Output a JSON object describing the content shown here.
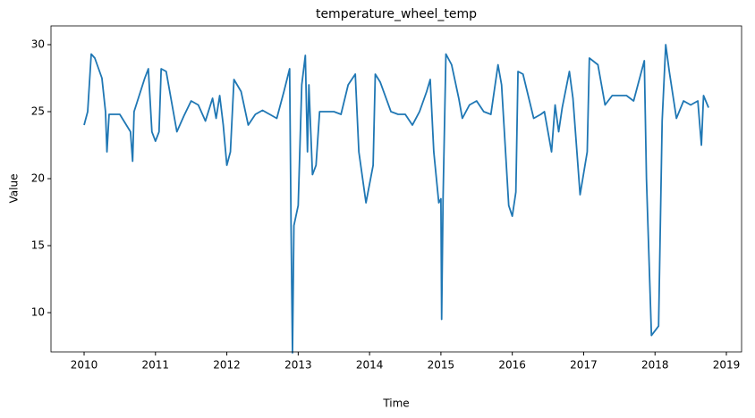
{
  "chart_data": {
    "type": "line",
    "title": "temperature_wheel_temp",
    "x_label": "Time",
    "y_label": "Value",
    "color": "#1f77b4",
    "x": [
      2010.0,
      2010.05,
      2010.1,
      2010.15,
      2010.25,
      2010.3,
      2010.32,
      2010.35,
      2010.5,
      2010.65,
      2010.68,
      2010.7,
      2010.85,
      2010.9,
      2010.95,
      2011.0,
      2011.05,
      2011.08,
      2011.15,
      2011.25,
      2011.3,
      2011.4,
      2011.5,
      2011.6,
      2011.7,
      2011.8,
      2011.85,
      2011.9,
      2011.95,
      2012.0,
      2012.05,
      2012.1,
      2012.2,
      2012.3,
      2012.4,
      2012.5,
      2012.6,
      2012.7,
      2012.8,
      2012.88,
      2012.9,
      2012.92,
      2012.94,
      2013.0,
      2013.05,
      2013.1,
      2013.13,
      2013.15,
      2013.2,
      2013.25,
      2013.3,
      2013.5,
      2013.6,
      2013.7,
      2013.8,
      2013.85,
      2013.95,
      2014.05,
      2014.08,
      2014.15,
      2014.3,
      2014.4,
      2014.5,
      2014.6,
      2014.7,
      2014.8,
      2014.85,
      2014.9,
      2014.97,
      2015.0,
      2015.01,
      2015.03,
      2015.07,
      2015.15,
      2015.25,
      2015.3,
      2015.4,
      2015.5,
      2015.6,
      2015.7,
      2015.8,
      2015.85,
      2015.95,
      2016.0,
      2016.05,
      2016.08,
      2016.15,
      2016.3,
      2016.4,
      2016.45,
      2016.55,
      2016.6,
      2016.65,
      2016.7,
      2016.8,
      2016.85,
      2016.95,
      2017.05,
      2017.08,
      2017.2,
      2017.3,
      2017.4,
      2017.6,
      2017.7,
      2017.85,
      2017.88,
      2017.95,
      2018.05,
      2018.1,
      2018.15,
      2018.2,
      2018.3,
      2018.4,
      2018.5,
      2018.6,
      2018.65,
      2018.68,
      2018.75
    ],
    "values": [
      24,
      25,
      29.3,
      29,
      27.5,
      25,
      22,
      24.8,
      24.8,
      23.5,
      21.3,
      25,
      27.5,
      28.2,
      23.5,
      22.8,
      23.5,
      28.2,
      28,
      25,
      23.5,
      24.7,
      25.8,
      25.5,
      24.3,
      26,
      24.5,
      26.2,
      24,
      21,
      22,
      27.4,
      26.5,
      24,
      24.8,
      25.1,
      24.8,
      24.5,
      26.5,
      28.2,
      16.5,
      7,
      16.5,
      18,
      27,
      29.2,
      22,
      27,
      20.3,
      21,
      25,
      25,
      24.8,
      27,
      27.8,
      22,
      18.2,
      21,
      27.8,
      27.2,
      25,
      24.8,
      24.8,
      24,
      25,
      26.5,
      27.4,
      22,
      18.2,
      18.5,
      9.5,
      18.5,
      29.3,
      28.5,
      26,
      24.5,
      25.5,
      25.8,
      25,
      24.8,
      28.5,
      27,
      18,
      17.2,
      19,
      28,
      27.8,
      24.5,
      24.8,
      25,
      22,
      25.5,
      23.5,
      25.3,
      28,
      26,
      18.8,
      22,
      29,
      28.5,
      25.5,
      26.2,
      26.2,
      25.8,
      28.8,
      20,
      8.3,
      9,
      24.3,
      30,
      28,
      24.5,
      25.8,
      25.5,
      25.8,
      22.5,
      26.2,
      25.3
    ],
    "xlim": [
      2009.536,
      2019.213
    ],
    "xticks": [
      2010,
      2011,
      2012,
      2013,
      2014,
      2015,
      2016,
      2017,
      2018,
      2019
    ],
    "ylim": [
      7.07,
      31.4
    ],
    "yticks": [
      10,
      15,
      20,
      25,
      30
    ]
  }
}
